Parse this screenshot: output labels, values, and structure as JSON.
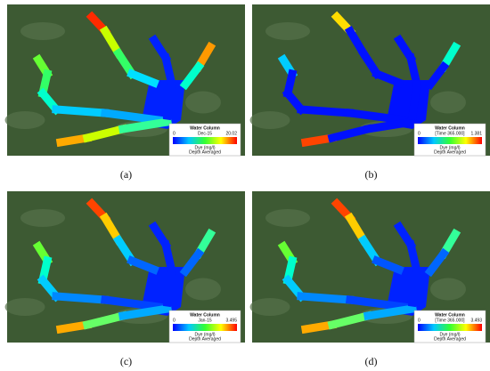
{
  "panels": [
    {
      "label": "(a)",
      "legend": {
        "title": "Water Column",
        "min": 0,
        "time": "Dec-15",
        "max": 20.02,
        "unit": "Dye (mg/l)",
        "note": "Depth Averaged"
      }
    },
    {
      "label": "(b)",
      "legend": {
        "title": "Water Column",
        "min": 0,
        "time": "[Time 365.000]",
        "max": 1.381,
        "unit": "Dye (mg/l)",
        "note": "Depth Averaged"
      }
    },
    {
      "label": "(c)",
      "legend": {
        "title": "Water Column",
        "min": 0,
        "time": "Jan-15",
        "max": 3.495,
        "unit": "Dye (mg/l)",
        "note": "Depth Averaged"
      }
    },
    {
      "label": "(d)",
      "legend": {
        "title": "Water Column",
        "min": 0,
        "time": "[Time 365.000]",
        "max": 3.493,
        "unit": "Dye (mg/l)",
        "note": "Depth Averaged"
      }
    }
  ]
}
